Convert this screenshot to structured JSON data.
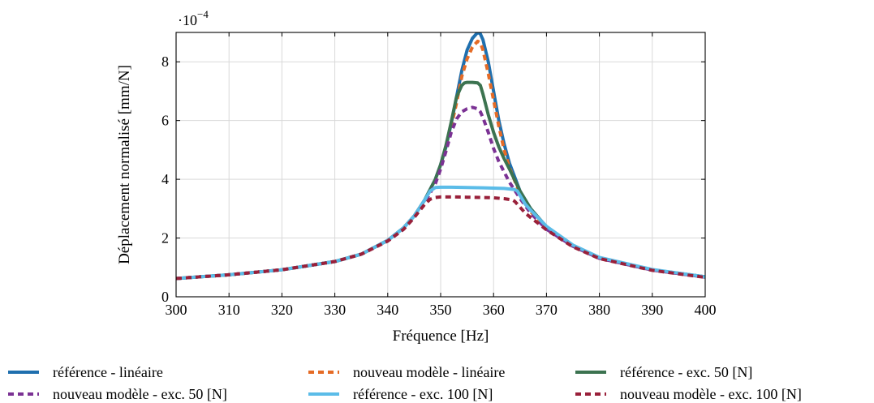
{
  "chart_data": {
    "type": "line",
    "xlabel": "Fréquence [Hz]",
    "ylabel": "Déplacement normalisé [mm/N]",
    "y_exponent_label": "·10",
    "y_exponent_power": "−4",
    "xlim": [
      300,
      400
    ],
    "ylim": [
      0,
      9
    ],
    "xticks": [
      "300",
      "310",
      "320",
      "330",
      "340",
      "350",
      "360",
      "370",
      "380",
      "390",
      "400"
    ],
    "yticks": [
      "0",
      "2",
      "4",
      "6",
      "8"
    ],
    "grid": true,
    "legend_position": "bottom",
    "series": [
      {
        "name": "référence - linéaire",
        "color": "#1f6fae",
        "dash": "solid",
        "x": [
          300,
          310,
          320,
          330,
          335,
          340,
          343,
          345,
          347,
          349,
          350,
          351,
          352,
          353,
          354,
          355,
          356,
          357,
          357.5,
          358,
          359,
          360,
          361,
          362,
          363,
          365,
          367,
          370,
          375,
          380,
          390,
          400
        ],
        "y": [
          0.62,
          0.75,
          0.92,
          1.2,
          1.45,
          1.92,
          2.35,
          2.75,
          3.3,
          4.0,
          4.5,
          5.1,
          5.9,
          6.8,
          7.7,
          8.4,
          8.8,
          9.0,
          8.95,
          8.75,
          8.0,
          7.0,
          6.0,
          5.2,
          4.55,
          3.6,
          3.0,
          2.38,
          1.75,
          1.33,
          0.92,
          0.68
        ]
      },
      {
        "name": "nouveau modèle - linéaire",
        "color": "#e56b26",
        "dash": "dashed",
        "x": [
          300,
          310,
          320,
          330,
          335,
          340,
          343,
          345,
          347,
          349,
          350,
          351,
          352,
          353,
          354,
          355,
          356,
          357,
          357.5,
          358,
          359,
          360,
          361,
          362,
          363,
          365,
          367,
          370,
          375,
          380,
          390,
          400
        ],
        "y": [
          0.62,
          0.75,
          0.92,
          1.2,
          1.45,
          1.9,
          2.3,
          2.7,
          3.2,
          3.9,
          4.4,
          5.0,
          5.8,
          6.6,
          7.5,
          8.1,
          8.5,
          8.7,
          8.65,
          8.4,
          7.6,
          6.7,
          5.8,
          5.0,
          4.4,
          3.5,
          2.9,
          2.32,
          1.72,
          1.31,
          0.91,
          0.67
        ]
      },
      {
        "name": "référence - exc. 50 [N]",
        "color": "#3c7350",
        "dash": "solid",
        "x": [
          300,
          310,
          320,
          330,
          335,
          340,
          343,
          345,
          347,
          349,
          350,
          351,
          352,
          353,
          354,
          354.5,
          355,
          356,
          357,
          357.5,
          358,
          359,
          360,
          361,
          362,
          363,
          365,
          367,
          370,
          375,
          380,
          390,
          400
        ],
        "y": [
          0.62,
          0.75,
          0.92,
          1.2,
          1.45,
          1.92,
          2.35,
          2.75,
          3.3,
          4.0,
          4.5,
          5.15,
          5.95,
          6.8,
          7.2,
          7.28,
          7.3,
          7.3,
          7.28,
          7.2,
          6.9,
          6.2,
          5.6,
          5.1,
          4.7,
          4.35,
          3.6,
          3.0,
          2.38,
          1.75,
          1.33,
          0.92,
          0.68
        ]
      },
      {
        "name": "nouveau modèle - exc. 50 [N]",
        "color": "#7b3294",
        "dash": "dashed",
        "x": [
          300,
          310,
          320,
          330,
          335,
          340,
          343,
          345,
          347,
          349,
          350,
          351,
          352,
          353,
          354,
          355,
          356,
          357,
          357.5,
          358,
          359,
          360,
          361,
          362,
          363,
          365,
          367,
          370,
          375,
          380,
          390,
          400
        ],
        "y": [
          0.62,
          0.75,
          0.92,
          1.2,
          1.45,
          1.9,
          2.3,
          2.7,
          3.2,
          3.85,
          4.35,
          4.95,
          5.6,
          6.05,
          6.3,
          6.4,
          6.45,
          6.4,
          6.3,
          6.1,
          5.6,
          5.05,
          4.6,
          4.25,
          3.9,
          3.35,
          2.85,
          2.3,
          1.72,
          1.31,
          0.91,
          0.67
        ]
      },
      {
        "name": "référence - exc. 100 [N]",
        "color": "#5bbce8",
        "dash": "solid",
        "x": [
          300,
          310,
          320,
          330,
          335,
          340,
          343,
          345,
          347,
          348,
          349,
          350,
          352,
          355,
          358,
          360,
          362,
          364,
          364.5,
          365,
          366,
          367,
          370,
          375,
          380,
          390,
          400
        ],
        "y": [
          0.62,
          0.75,
          0.92,
          1.2,
          1.45,
          1.92,
          2.35,
          2.75,
          3.3,
          3.6,
          3.72,
          3.73,
          3.73,
          3.72,
          3.71,
          3.7,
          3.69,
          3.65,
          3.6,
          3.45,
          3.15,
          2.95,
          2.4,
          1.76,
          1.34,
          0.93,
          0.68
        ]
      },
      {
        "name": "nouveau modèle - exc. 100 [N]",
        "color": "#99203a",
        "dash": "dashed",
        "x": [
          300,
          310,
          320,
          330,
          335,
          340,
          343,
          345,
          347,
          348,
          349,
          350,
          352,
          355,
          358,
          360,
          362,
          363.5,
          364,
          365,
          366,
          367,
          370,
          375,
          380,
          390,
          400
        ],
        "y": [
          0.62,
          0.75,
          0.92,
          1.2,
          1.45,
          1.9,
          2.3,
          2.7,
          3.15,
          3.32,
          3.38,
          3.4,
          3.4,
          3.39,
          3.38,
          3.37,
          3.34,
          3.3,
          3.25,
          3.05,
          2.85,
          2.7,
          2.28,
          1.7,
          1.3,
          0.9,
          0.66
        ]
      }
    ]
  }
}
